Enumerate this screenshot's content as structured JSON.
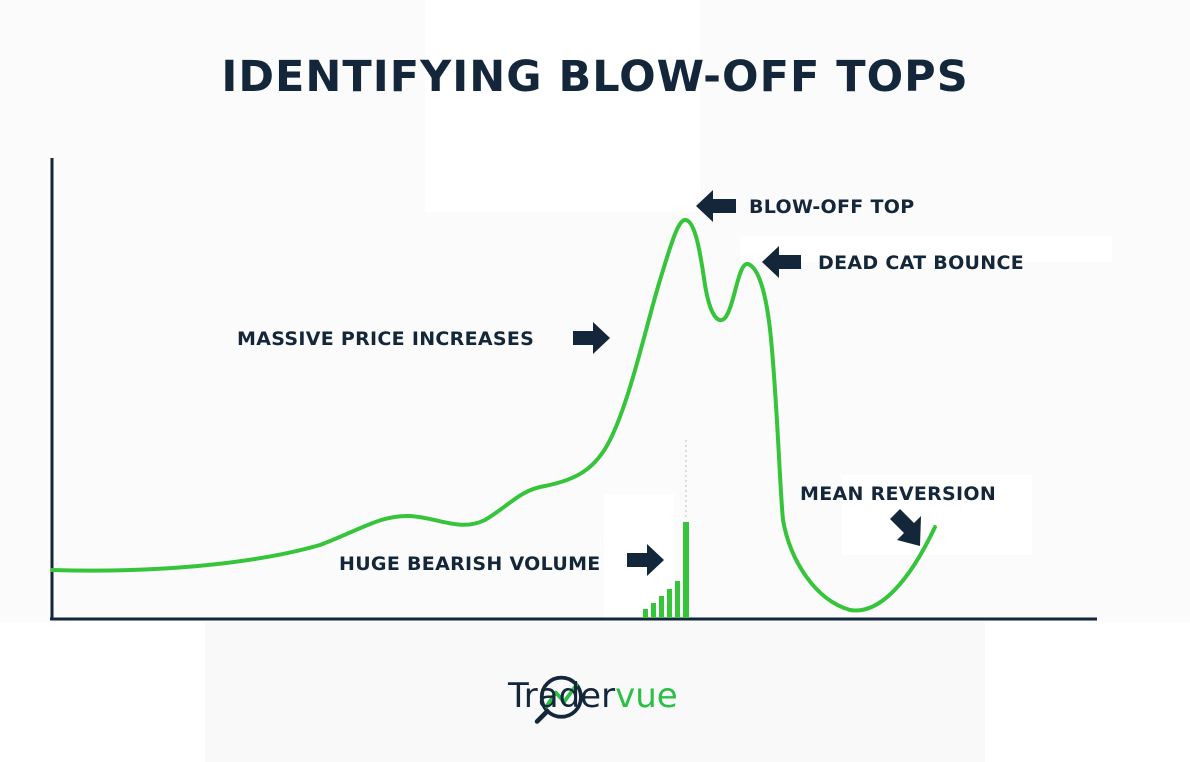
{
  "title": "IDENTIFYING BLOW-OFF TOPS",
  "annotations": {
    "blow_off_top": "BLOW-OFF TOP",
    "dead_cat_bounce": "DEAD CAT BOUNCE",
    "massive_price_increases": "MASSIVE PRICE INCREASES",
    "huge_bearish_volume": "HUGE BEARISH VOLUME",
    "mean_reversion": "MEAN REVERSION"
  },
  "brand": {
    "name_part1": "Trader",
    "name_part2": "vue"
  },
  "colors": {
    "curve": "#35c43a",
    "text": "#13263a",
    "volume": "#35c43a"
  },
  "icons": {
    "logo": "tradervue-magnifier-chart-icon",
    "arrows": "arrow-icon"
  }
}
